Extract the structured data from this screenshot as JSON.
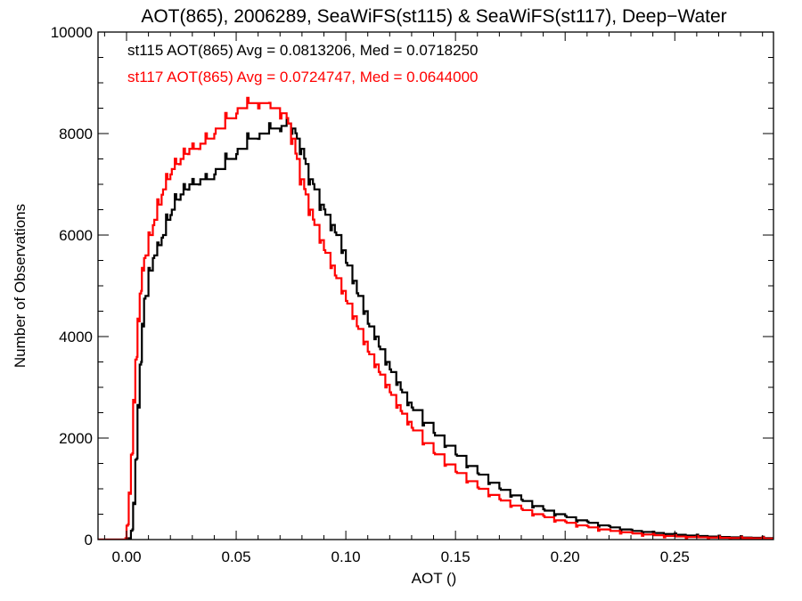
{
  "chart_data": {
    "type": "line",
    "step": true,
    "title": "AOT(865), 2006289, SeaWiFS(st115) & SeaWiFS(st117), Deep−Water",
    "xlabel": "AOT ()",
    "ylabel": "Number of Observations",
    "xlim": [
      -0.013,
      0.295
    ],
    "ylim": [
      0,
      10000
    ],
    "xticks": [
      0.0,
      0.05,
      0.1,
      0.15,
      0.2,
      0.25
    ],
    "xtick_labels": [
      "0.00",
      "0.05",
      "0.10",
      "0.15",
      "0.20",
      "0.25"
    ],
    "yticks": [
      0,
      2000,
      4000,
      6000,
      8000,
      10000
    ],
    "ytick_labels": [
      "0",
      "2000",
      "4000",
      "6000",
      "8000",
      "10000"
    ],
    "grid": false,
    "colors": {
      "st115": "#000000",
      "st117": "#ff0000"
    },
    "annotations": [
      {
        "text": "st115 AOT(865) Avg = 0.0813206, Med = 0.0718250",
        "color": "#000000"
      },
      {
        "text": "st117 AOT(865) Avg = 0.0724747, Med = 0.0644000",
        "color": "#ff0000"
      }
    ],
    "series": [
      {
        "key": "st115",
        "color": "#000000",
        "x": [
          -0.013,
          0.001,
          0.002,
          0.003,
          0.004,
          0.005,
          0.006,
          0.007,
          0.008,
          0.01,
          0.012,
          0.014,
          0.016,
          0.018,
          0.02,
          0.022,
          0.024,
          0.026,
          0.028,
          0.03,
          0.033,
          0.036,
          0.04,
          0.045,
          0.05,
          0.055,
          0.06,
          0.065,
          0.07,
          0.073,
          0.075,
          0.077,
          0.079,
          0.081,
          0.083,
          0.085,
          0.088,
          0.09,
          0.093,
          0.095,
          0.098,
          0.1,
          0.103,
          0.105,
          0.108,
          0.11,
          0.113,
          0.115,
          0.118,
          0.12,
          0.123,
          0.125,
          0.128,
          0.13,
          0.135,
          0.14,
          0.145,
          0.15,
          0.155,
          0.16,
          0.165,
          0.17,
          0.175,
          0.18,
          0.185,
          0.19,
          0.195,
          0.2,
          0.205,
          0.21,
          0.215,
          0.22,
          0.225,
          0.23,
          0.235,
          0.24,
          0.245,
          0.25,
          0.255,
          0.26,
          0.265,
          0.27,
          0.275,
          0.28,
          0.285,
          0.29,
          0.295
        ],
        "y": [
          0,
          0,
          200,
          700,
          1600,
          2600,
          3500,
          4200,
          4800,
          5300,
          5600,
          5800,
          6000,
          6300,
          6500,
          6700,
          6800,
          6900,
          7000,
          7000,
          7100,
          7100,
          7300,
          7500,
          7700,
          7900,
          8000,
          8100,
          8150,
          8200,
          8100,
          7900,
          7700,
          7400,
          7100,
          6900,
          6600,
          6400,
          6200,
          6000,
          5700,
          5400,
          5100,
          4800,
          4500,
          4200,
          4000,
          3750,
          3500,
          3300,
          3100,
          2900,
          2700,
          2550,
          2300,
          2050,
          1850,
          1650,
          1450,
          1280,
          1120,
          980,
          870,
          760,
          660,
          570,
          500,
          440,
          380,
          330,
          280,
          240,
          200,
          170,
          150,
          130,
          110,
          95,
          80,
          70,
          60,
          50,
          45,
          40,
          35,
          30,
          30
        ]
      },
      {
        "key": "st117",
        "color": "#ff0000",
        "x": [
          -0.013,
          -0.0005,
          0.0,
          0.001,
          0.002,
          0.003,
          0.004,
          0.005,
          0.006,
          0.007,
          0.008,
          0.01,
          0.012,
          0.014,
          0.016,
          0.018,
          0.02,
          0.022,
          0.024,
          0.026,
          0.028,
          0.03,
          0.033,
          0.036,
          0.04,
          0.045,
          0.05,
          0.055,
          0.06,
          0.065,
          0.07,
          0.073,
          0.075,
          0.077,
          0.079,
          0.081,
          0.083,
          0.085,
          0.088,
          0.09,
          0.093,
          0.095,
          0.098,
          0.1,
          0.103,
          0.105,
          0.108,
          0.11,
          0.113,
          0.115,
          0.118,
          0.12,
          0.123,
          0.125,
          0.128,
          0.13,
          0.135,
          0.14,
          0.145,
          0.15,
          0.155,
          0.16,
          0.165,
          0.17,
          0.175,
          0.18,
          0.185,
          0.19,
          0.195,
          0.2,
          0.205,
          0.21,
          0.215,
          0.22,
          0.225,
          0.23,
          0.235,
          0.24,
          0.245,
          0.25,
          0.255,
          0.26,
          0.265,
          0.27,
          0.275,
          0.28,
          0.285,
          0.29,
          0.295
        ],
        "y": [
          0,
          0,
          300,
          900,
          1700,
          2700,
          3600,
          4300,
          4900,
          5300,
          5600,
          6000,
          6300,
          6600,
          6900,
          7100,
          7300,
          7400,
          7500,
          7600,
          7700,
          7700,
          7800,
          7900,
          8100,
          8300,
          8500,
          8600,
          8600,
          8500,
          8400,
          8200,
          7900,
          7500,
          7100,
          6800,
          6500,
          6200,
          5900,
          5650,
          5400,
          5150,
          4900,
          4650,
          4400,
          4150,
          3900,
          3650,
          3450,
          3250,
          3050,
          2850,
          2650,
          2480,
          2320,
          2150,
          1900,
          1680,
          1480,
          1310,
          1150,
          1000,
          880,
          770,
          670,
          580,
          500,
          440,
          380,
          330,
          280,
          240,
          200,
          170,
          145,
          120,
          100,
          85,
          70,
          60,
          50,
          45,
          40,
          35,
          30,
          28,
          25,
          20,
          20
        ]
      }
    ]
  }
}
